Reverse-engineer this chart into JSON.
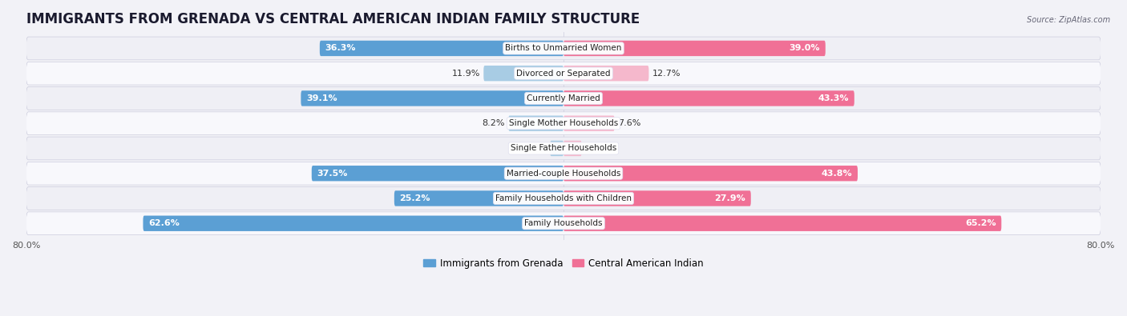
{
  "title": "IMMIGRANTS FROM GRENADA VS CENTRAL AMERICAN INDIAN FAMILY STRUCTURE",
  "source": "Source: ZipAtlas.com",
  "categories": [
    "Family Households",
    "Family Households with Children",
    "Married-couple Households",
    "Single Father Households",
    "Single Mother Households",
    "Currently Married",
    "Divorced or Separated",
    "Births to Unmarried Women"
  ],
  "grenada_values": [
    62.6,
    25.2,
    37.5,
    2.0,
    8.2,
    39.1,
    11.9,
    36.3
  ],
  "indian_values": [
    65.2,
    27.9,
    43.8,
    2.7,
    7.6,
    43.3,
    12.7,
    39.0
  ],
  "max_val": 80.0,
  "bar_height": 0.62,
  "grenada_color_strong": "#5b9fd4",
  "grenada_color_light": "#a8cce4",
  "indian_color_strong": "#f07096",
  "indian_color_light": "#f5b8cc",
  "bg_color": "#f2f2f7",
  "row_bg_light": "#f8f8fc",
  "row_bg_mid": "#efeff5",
  "title_fontsize": 12,
  "value_fontsize": 8,
  "cat_fontsize": 7.5,
  "tick_fontsize": 8,
  "legend_fontsize": 8.5,
  "strong_threshold": 20
}
